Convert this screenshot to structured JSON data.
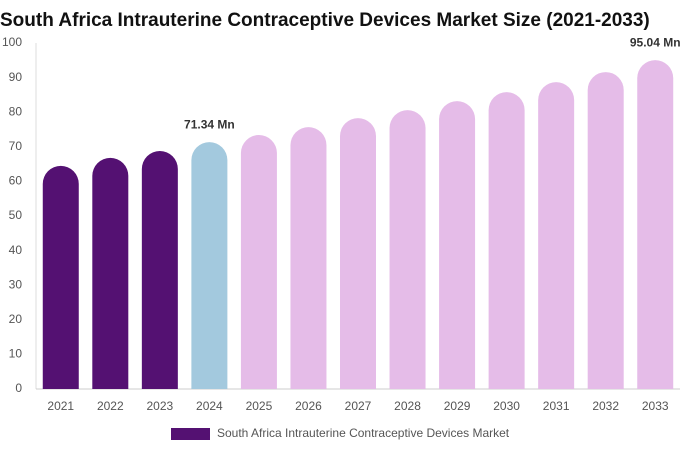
{
  "chart_data": {
    "type": "bar",
    "title": "South Africa Intrauterine Contraceptive Devices Market Size (2021-2033)",
    "categories": [
      "2021",
      "2022",
      "2023",
      "2024",
      "2025",
      "2026",
      "2027",
      "2028",
      "2029",
      "2030",
      "2031",
      "2032",
      "2033"
    ],
    "series": [
      {
        "name": "South Africa Intrauterine Contraceptive Devices Market",
        "color": "#541172",
        "values": [
          64.5,
          66.8,
          68.8,
          71.34,
          73.4,
          75.7,
          78.3,
          80.6,
          83.2,
          85.8,
          88.7,
          91.6,
          95.04
        ],
        "value_labels": [
          null,
          null,
          null,
          "71.34 Mn",
          null,
          null,
          null,
          null,
          null,
          null,
          null,
          null,
          "95.04 Mn"
        ],
        "bar_colors": [
          "#541172",
          "#541172",
          "#541172",
          "#a3c9de",
          "#e5bce8",
          "#e5bce8",
          "#e5bce8",
          "#e5bce8",
          "#e5bce8",
          "#e5bce8",
          "#e5bce8",
          "#e5bce8",
          "#e5bce8"
        ]
      }
    ],
    "ylim": [
      0,
      100
    ],
    "yticks": [
      0,
      10,
      20,
      30,
      40,
      50,
      60,
      70,
      80,
      90,
      100
    ],
    "grid": false
  }
}
